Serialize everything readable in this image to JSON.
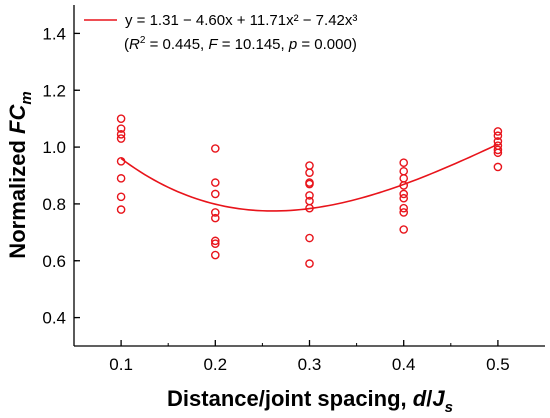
{
  "chart_data": {
    "type": "scatter",
    "title": "",
    "xlabel": {
      "main": "Distance/joint spacing, ",
      "italic": "d",
      "slash": "/",
      "italic2": "J",
      "sub": "s"
    },
    "ylabel": {
      "main": "Normalized ",
      "italic": "FC",
      "sub": "m"
    },
    "xlim": [
      0.05,
      0.55
    ],
    "ylim": [
      0.3,
      1.5
    ],
    "xticks": [
      0.1,
      0.2,
      0.3,
      0.4,
      0.5
    ],
    "yticks": [
      0.4,
      0.6,
      0.8,
      1.0,
      1.2,
      1.4
    ],
    "xtick_labels": [
      "0.1",
      "0.2",
      "0.3",
      "0.4",
      "0.5"
    ],
    "ytick_labels": [
      "0.4",
      "0.6",
      "0.8",
      "1.0",
      "1.2",
      "1.4"
    ],
    "grid": false,
    "legend_position": "top-left",
    "color": "#e8141b",
    "legend": {
      "equation": "y = 1.31 − 4.60x + 11.71x² − 7.42x³",
      "stats_open": "(",
      "r2_label": "R",
      "r2_sup": "2",
      "r2_value": " = 0.445, ",
      "f_label": "F",
      "f_value": " = 10.145, ",
      "p_label": "p",
      "p_value": " = 0.000)"
    },
    "fit": {
      "coefficients": [
        1.31,
        -4.6,
        11.71,
        -7.42
      ],
      "x_range": [
        0.1,
        0.5
      ]
    },
    "points": [
      {
        "x": 0.1,
        "y": 1.1
      },
      {
        "x": 0.1,
        "y": 1.065
      },
      {
        "x": 0.1,
        "y": 1.045
      },
      {
        "x": 0.1,
        "y": 1.03
      },
      {
        "x": 0.1,
        "y": 0.95
      },
      {
        "x": 0.1,
        "y": 0.89
      },
      {
        "x": 0.1,
        "y": 0.825
      },
      {
        "x": 0.1,
        "y": 0.78
      },
      {
        "x": 0.2,
        "y": 0.995
      },
      {
        "x": 0.2,
        "y": 0.875
      },
      {
        "x": 0.2,
        "y": 0.835
      },
      {
        "x": 0.2,
        "y": 0.77
      },
      {
        "x": 0.2,
        "y": 0.75
      },
      {
        "x": 0.2,
        "y": 0.67
      },
      {
        "x": 0.2,
        "y": 0.66
      },
      {
        "x": 0.2,
        "y": 0.62
      },
      {
        "x": 0.3,
        "y": 0.935
      },
      {
        "x": 0.3,
        "y": 0.91
      },
      {
        "x": 0.3,
        "y": 0.875
      },
      {
        "x": 0.3,
        "y": 0.87
      },
      {
        "x": 0.3,
        "y": 0.83
      },
      {
        "x": 0.3,
        "y": 0.81
      },
      {
        "x": 0.3,
        "y": 0.785
      },
      {
        "x": 0.3,
        "y": 0.68
      },
      {
        "x": 0.3,
        "y": 0.59
      },
      {
        "x": 0.4,
        "y": 0.945
      },
      {
        "x": 0.4,
        "y": 0.915
      },
      {
        "x": 0.4,
        "y": 0.89
      },
      {
        "x": 0.4,
        "y": 0.865
      },
      {
        "x": 0.4,
        "y": 0.835
      },
      {
        "x": 0.4,
        "y": 0.82
      },
      {
        "x": 0.4,
        "y": 0.785
      },
      {
        "x": 0.4,
        "y": 0.77
      },
      {
        "x": 0.4,
        "y": 0.71
      },
      {
        "x": 0.5,
        "y": 1.055
      },
      {
        "x": 0.5,
        "y": 1.04
      },
      {
        "x": 0.5,
        "y": 1.02
      },
      {
        "x": 0.5,
        "y": 1.005
      },
      {
        "x": 0.5,
        "y": 0.99
      },
      {
        "x": 0.5,
        "y": 0.98
      },
      {
        "x": 0.5,
        "y": 0.93
      }
    ]
  }
}
